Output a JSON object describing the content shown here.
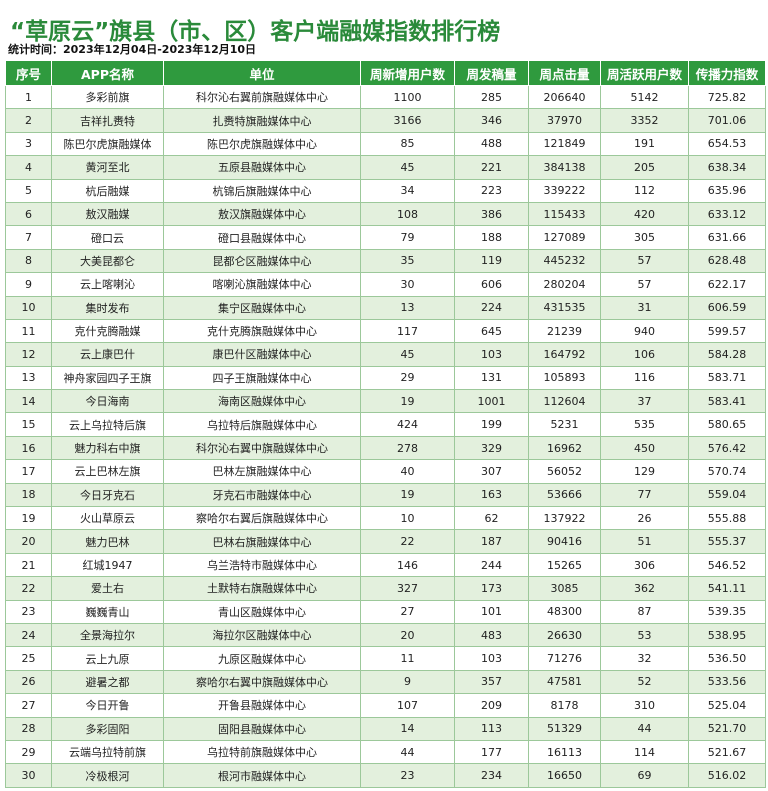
{
  "title": "“草原云”旗县（市、区）客户端融媒指数排行榜",
  "subtitle": "统计时间：2023年12月04日-2023年12月10日",
  "colors": {
    "header_bg": "#2f9a3e",
    "title": "#2a8a3a",
    "alt_row": "#e3f0dd",
    "border": "#9cc89a"
  },
  "table": {
    "columns": [
      "序号",
      "APP名称",
      "单位",
      "周新增用户数",
      "周发稿量",
      "周点击量",
      "周活跃用户数",
      "传播力指数"
    ],
    "rows": [
      [
        "1",
        "多彩前旗",
        "科尔沁右翼前旗融媒体中心",
        "1100",
        "285",
        "206640",
        "5142",
        "725.82"
      ],
      [
        "2",
        "吉祥扎赉特",
        "扎赉特旗融媒体中心",
        "3166",
        "346",
        "37970",
        "3352",
        "701.06"
      ],
      [
        "3",
        "陈巴尔虎旗融媒体",
        "陈巴尔虎旗融媒体中心",
        "85",
        "488",
        "121849",
        "191",
        "654.53"
      ],
      [
        "4",
        "黄河至北",
        "五原县融媒体中心",
        "45",
        "221",
        "384138",
        "205",
        "638.34"
      ],
      [
        "5",
        "杭后融媒",
        "杭锦后旗融媒体中心",
        "34",
        "223",
        "339222",
        "112",
        "635.96"
      ],
      [
        "6",
        "敖汉融媒",
        "敖汉旗融媒体中心",
        "108",
        "386",
        "115433",
        "420",
        "633.12"
      ],
      [
        "7",
        "磴口云",
        "磴口县融媒体中心",
        "79",
        "188",
        "127089",
        "305",
        "631.66"
      ],
      [
        "8",
        "大美昆都仑",
        "昆都仑区融媒体中心",
        "35",
        "119",
        "445232",
        "57",
        "628.48"
      ],
      [
        "9",
        "云上喀喇沁",
        "喀喇沁旗融媒体中心",
        "30",
        "606",
        "280204",
        "57",
        "622.17"
      ],
      [
        "10",
        "集时发布",
        "集宁区融媒体中心",
        "13",
        "224",
        "431535",
        "31",
        "606.59"
      ],
      [
        "11",
        "克什克腾融媒",
        "克什克腾旗融媒体中心",
        "117",
        "645",
        "21239",
        "940",
        "599.57"
      ],
      [
        "12",
        "云上康巴什",
        "康巴什区融媒体中心",
        "45",
        "103",
        "164792",
        "106",
        "584.28"
      ],
      [
        "13",
        "神舟家园四子王旗",
        "四子王旗融媒体中心",
        "29",
        "131",
        "105893",
        "116",
        "583.71"
      ],
      [
        "14",
        "今日海南",
        "海南区融媒体中心",
        "19",
        "1001",
        "112604",
        "37",
        "583.41"
      ],
      [
        "15",
        "云上乌拉特后旗",
        "乌拉特后旗融媒体中心",
        "424",
        "199",
        "5231",
        "535",
        "580.65"
      ],
      [
        "16",
        "魅力科右中旗",
        "科尔沁右翼中旗融媒体中心",
        "278",
        "329",
        "16962",
        "450",
        "576.42"
      ],
      [
        "17",
        "云上巴林左旗",
        "巴林左旗融媒体中心",
        "40",
        "307",
        "56052",
        "129",
        "570.74"
      ],
      [
        "18",
        "今日牙克石",
        "牙克石市融媒体中心",
        "19",
        "163",
        "53666",
        "77",
        "559.04"
      ],
      [
        "19",
        "火山草原云",
        "察哈尔右翼后旗融媒体中心",
        "10",
        "62",
        "137922",
        "26",
        "555.88"
      ],
      [
        "20",
        "魅力巴林",
        "巴林右旗融媒体中心",
        "22",
        "187",
        "90416",
        "51",
        "555.37"
      ],
      [
        "21",
        "红城1947",
        "乌兰浩特市融媒体中心",
        "146",
        "244",
        "15265",
        "306",
        "546.52"
      ],
      [
        "22",
        "爱土右",
        "土默特右旗融媒体中心",
        "327",
        "173",
        "3085",
        "362",
        "541.11"
      ],
      [
        "23",
        "巍巍青山",
        "青山区融媒体中心",
        "27",
        "101",
        "48300",
        "87",
        "539.35"
      ],
      [
        "24",
        "全景海拉尔",
        "海拉尔区融媒体中心",
        "20",
        "483",
        "26630",
        "53",
        "538.95"
      ],
      [
        "25",
        "云上九原",
        "九原区融媒体中心",
        "11",
        "103",
        "71276",
        "32",
        "536.50"
      ],
      [
        "26",
        "避暑之都",
        "察哈尔右翼中旗融媒体中心",
        "9",
        "357",
        "47581",
        "52",
        "533.56"
      ],
      [
        "27",
        "今日开鲁",
        "开鲁县融媒体中心",
        "107",
        "209",
        "8178",
        "310",
        "525.04"
      ],
      [
        "28",
        "多彩固阳",
        "固阳县融媒体中心",
        "14",
        "113",
        "51329",
        "44",
        "521.70"
      ],
      [
        "29",
        "云端乌拉特前旗",
        "乌拉特前旗融媒体中心",
        "44",
        "177",
        "16113",
        "114",
        "521.67"
      ],
      [
        "30",
        "冷极根河",
        "根河市融媒体中心",
        "23",
        "234",
        "16650",
        "69",
        "516.02"
      ]
    ]
  }
}
